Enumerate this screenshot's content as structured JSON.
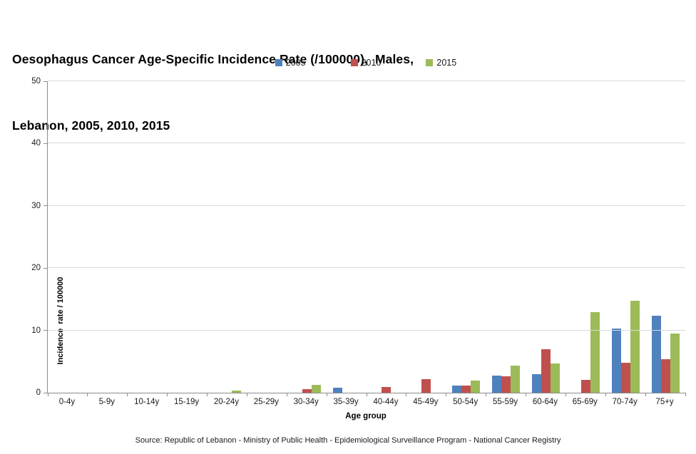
{
  "header": {
    "title_line1": "Oesophagus Cancer Age-Specific Incidence Rate (/100000),  Males,",
    "title_line2": "Lebanon, 2005, 2010, 2015"
  },
  "chart_data": {
    "type": "bar",
    "title": "Oesophagus Cancer Age-Specific Incidence Rate (/100000), Males, Lebanon, 2005, 2010, 2015",
    "categories": [
      "0-4y",
      "5-9y",
      "10-14y",
      "15-19y",
      "20-24y",
      "25-29y",
      "30-34y",
      "35-39y",
      "40-44y",
      "45-49y",
      "50-54y",
      "55-59y",
      "60-64y",
      "65-69y",
      "70-74y",
      "75+y"
    ],
    "series": [
      {
        "name": "2005",
        "color": "#4F81BD",
        "values": [
          0,
          0,
          0,
          0,
          0,
          0,
          0,
          0.8,
          0,
          0,
          1.1,
          2.8,
          3.0,
          0,
          10.3,
          12.4
        ]
      },
      {
        "name": "2010",
        "color": "#C0504D",
        "values": [
          0,
          0,
          0,
          0,
          0,
          0,
          0.6,
          0,
          0.9,
          2.2,
          1.2,
          2.6,
          7.0,
          2.1,
          4.8,
          5.4
        ]
      },
      {
        "name": "2015",
        "color": "#9BBB59",
        "values": [
          0,
          0,
          0,
          0,
          0.4,
          0,
          1.3,
          0,
          0,
          0,
          2.0,
          4.4,
          4.7,
          12.9,
          14.8,
          9.5
        ]
      }
    ],
    "xlabel": "Age group",
    "ylabel": "Incidence  rate / 100000",
    "ylim": [
      0,
      50
    ],
    "yticks": [
      0,
      10,
      20,
      30,
      40,
      50
    ],
    "legend_position": "top-center",
    "grid": "horizontal"
  },
  "source": {
    "text": "Source: Republic of Lebanon - Ministry of Public Health - Epidemiological Surveillance Program - National Cancer Registry"
  }
}
